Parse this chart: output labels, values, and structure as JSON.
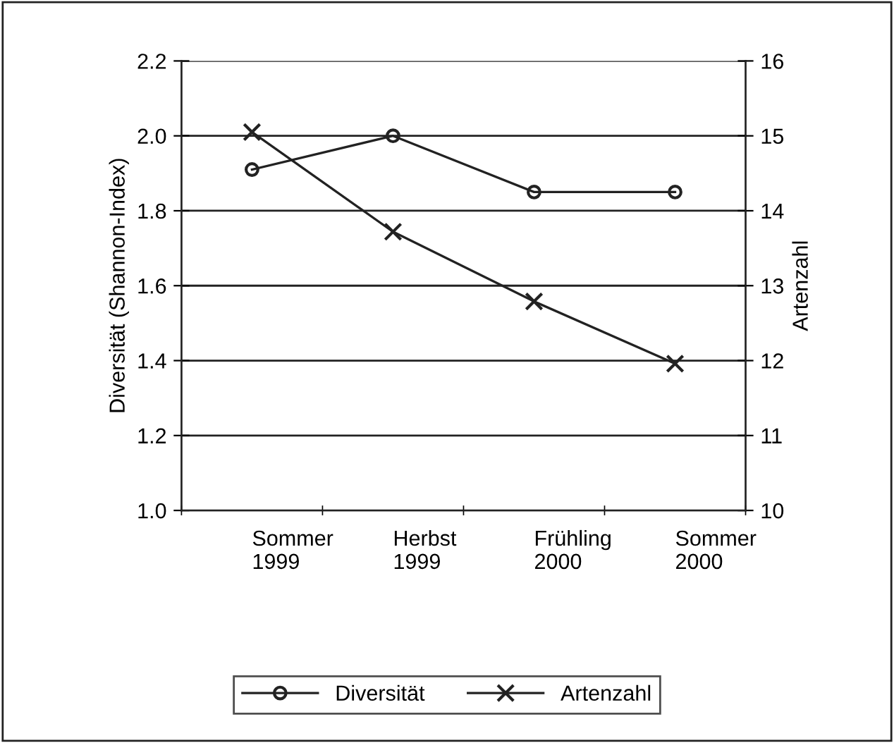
{
  "chart_data": {
    "type": "line",
    "ylabel": "Diversität (Shannon-Index)",
    "y2label": "Artenzahl",
    "categories": [
      "Sommer\n1999",
      "Herbst\n1999",
      "Frühling\n2000",
      "Sommer\n2000"
    ],
    "series": [
      {
        "name": "Diversität",
        "color": "#222222",
        "values": [
          1.91,
          2.0,
          1.85,
          1.85
        ],
        "marker": "circle"
      },
      {
        "name": "Artenzahl",
        "color": "#222222",
        "values": [
          15.05,
          13.72,
          12.79,
          11.96
        ],
        "marker": "cross",
        "axis": "y2"
      }
    ],
    "ylim": [
      1.0,
      2.2
    ],
    "yticks": [
      {
        "value": 1.0,
        "label": "1.0"
      },
      {
        "value": 1.2,
        "label": "1.2"
      },
      {
        "value": 1.4,
        "label": "1.4"
      },
      {
        "value": 1.6,
        "label": "1.6"
      },
      {
        "value": 1.8,
        "label": "1.8"
      },
      {
        "value": 2.0,
        "label": "2.0"
      },
      {
        "value": 2.2,
        "label": "2.2"
      }
    ],
    "y2lim": [
      10,
      16
    ],
    "y2ticks": [
      10,
      11,
      12,
      13,
      14,
      15,
      16
    ],
    "grid": "y",
    "legend": "bottom",
    "line_style": "solid"
  }
}
